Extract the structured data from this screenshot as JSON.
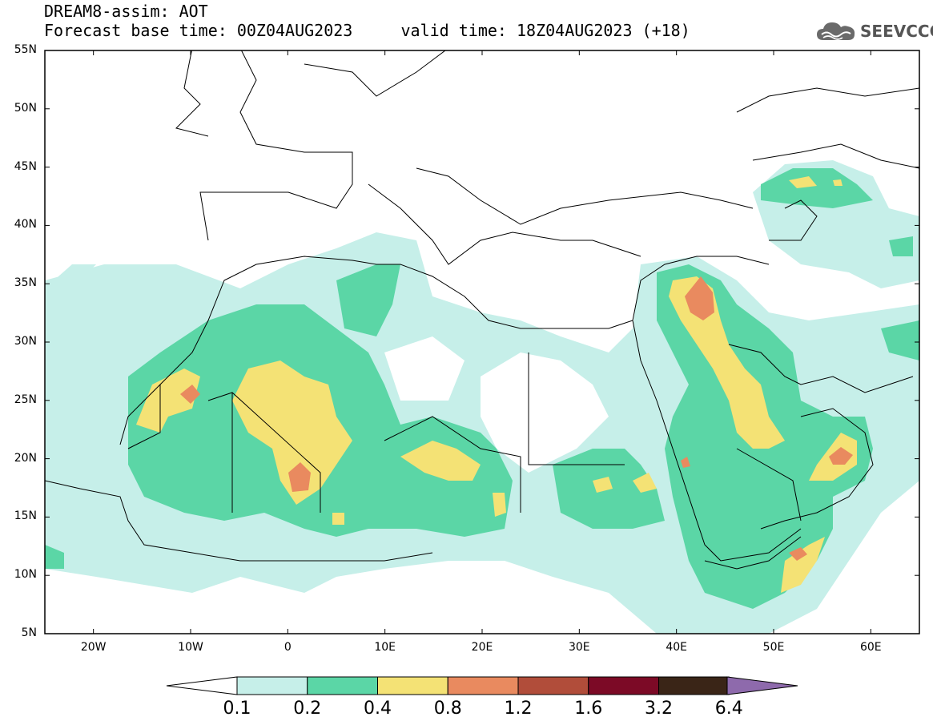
{
  "header": {
    "title_line1": "DREAM8-assim: AOT",
    "title_line2": "Forecast base time: 00Z04AUG2023     valid time: 18Z04AUG2023 (+18)"
  },
  "logo": {
    "text": "SEEVCCC",
    "icon": "cloud-icon",
    "color": "#555555"
  },
  "map": {
    "projection": "lat-lon",
    "lon_range": [
      -25,
      65
    ],
    "lat_range": [
      5,
      55
    ],
    "lat_ticks": [
      "55N",
      "50N",
      "45N",
      "40N",
      "35N",
      "30N",
      "25N",
      "20N",
      "15N",
      "10N",
      "5N"
    ],
    "lat_values": [
      55,
      50,
      45,
      40,
      35,
      30,
      25,
      20,
      15,
      10,
      5
    ],
    "lon_ticks": [
      "20W",
      "10W",
      "0",
      "10E",
      "20E",
      "30E",
      "40E",
      "50E",
      "60E"
    ],
    "lon_values": [
      -20,
      -10,
      0,
      10,
      20,
      30,
      40,
      50,
      60
    ]
  },
  "colorbar": {
    "labels": [
      "0.1",
      "0.2",
      "0.4",
      "0.8",
      "1.2",
      "1.6",
      "3.2",
      "6.4"
    ],
    "colors": [
      "#c6efe9",
      "#5bd6a6",
      "#f4e275",
      "#e98a5f",
      "#b14d3a",
      "#7c0a26",
      "#3a2517",
      "#8e6aac"
    ],
    "under_color": "#ffffff"
  }
}
